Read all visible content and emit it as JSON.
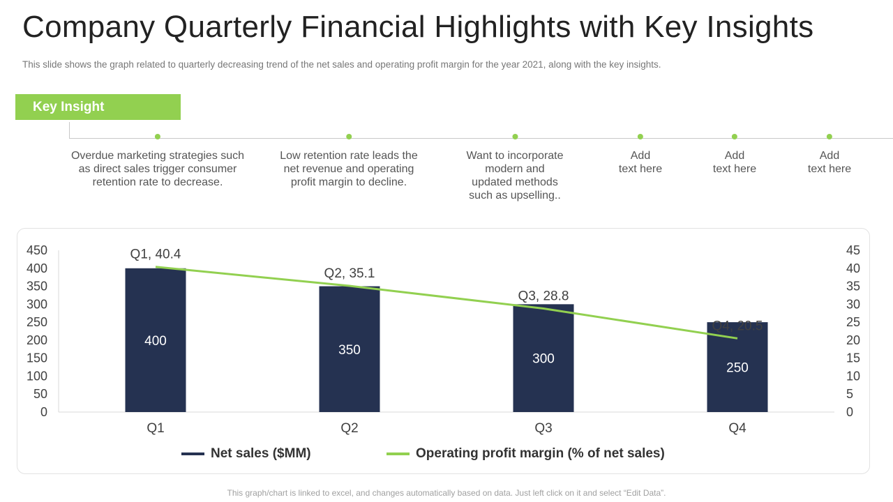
{
  "header": {
    "title": "Company Quarterly Financial Highlights with Key Insights",
    "subtitle": "This slide shows the graph related to quarterly decreasing trend of the net sales and operating profit margin for the year 2021, along with the key insights."
  },
  "insights": {
    "badge_label": "Key Insight",
    "items": [
      {
        "text": "Overdue marketing strategies such\nas direct sales trigger consumer\nretention rate to decrease."
      },
      {
        "text": "Low retention rate leads the\nnet revenue and operating\nprofit margin to decline."
      },
      {
        "text": "Want to incorporate\nmodern and\nupdated methods\nsuch as upselling.."
      },
      {
        "text": "Add\ntext here"
      },
      {
        "text": "Add\ntext here"
      },
      {
        "text": "Add\ntext here"
      }
    ]
  },
  "chart_data": {
    "type": "bar",
    "categories": [
      "Q1",
      "Q2",
      "Q3",
      "Q4"
    ],
    "series": [
      {
        "name": "Net sales ($MM)",
        "type": "bar",
        "axis": "left",
        "values": [
          400,
          350,
          300,
          250
        ],
        "color": "#253251"
      },
      {
        "name": "Operating profit margin (% of net sales)",
        "type": "line",
        "axis": "right",
        "values": [
          40.4,
          35.1,
          28.8,
          20.5
        ],
        "color": "#92d050"
      }
    ],
    "y_left": {
      "ylim": [
        0,
        450
      ],
      "ticks": [
        "0",
        "50",
        "100",
        "150",
        "200",
        "250",
        "300",
        "350",
        "400",
        "450"
      ]
    },
    "y_right": {
      "ylim": [
        0,
        45
      ],
      "ticks": [
        "0",
        "5",
        "10",
        "15",
        "20",
        "25",
        "30",
        "35",
        "40",
        "45"
      ]
    },
    "bar_labels": [
      "400",
      "350",
      "300",
      "250"
    ],
    "line_labels": [
      "Q1, 40.4",
      "Q2, 35.1",
      "Q3, 28.8",
      "Q4, 20.5"
    ],
    "grid": false,
    "legend": "bottom"
  },
  "legend": {
    "net_sales_label": "Net sales ($MM)",
    "margin_label": "Operating profit margin (% of net sales)",
    "net_sales_color": "#253251",
    "margin_color": "#92d050"
  },
  "footer": {
    "note": "This graph/chart is linked to excel, and changes automatically based on data. Just left click on it and select “Edit Data”."
  }
}
